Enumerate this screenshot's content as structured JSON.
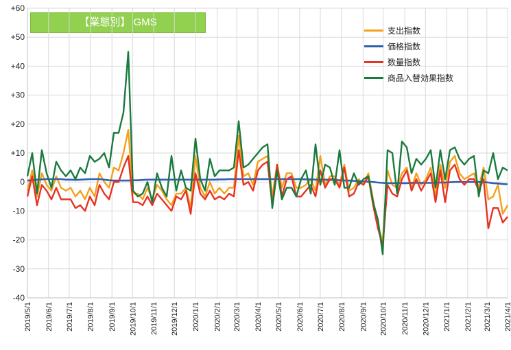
{
  "chart_data": {
    "type": "line",
    "title": "【業態別】 GMS",
    "xlabel": "",
    "ylabel": "",
    "ylim": [
      -40,
      60
    ],
    "yticks": [
      "+60",
      "+50",
      "+40",
      "+30",
      "+20",
      "+10",
      "0",
      "-10",
      "-20",
      "-30",
      "-40"
    ],
    "ytick_values": [
      60,
      50,
      40,
      30,
      20,
      10,
      0,
      -10,
      -20,
      -30,
      -40
    ],
    "xlim_weeks": [
      0,
      100
    ],
    "x_tick_labels": [
      "2019/5/1",
      "2019/6/1",
      "2019/7/1",
      "2019/8/1",
      "2019/9/1",
      "2019/10/1",
      "2019/11/1",
      "2019/12/1",
      "2020/1/1",
      "2020/2/1",
      "2020/3/1",
      "2020/4/1",
      "2020/5/1",
      "2020/6/1",
      "2020/7/1",
      "2020/8/1",
      "2020/9/1",
      "2020/10/1",
      "2020/11/1",
      "2020/12/1",
      "2021/1/1",
      "2021/2/1",
      "2021/3/1",
      "2021/4/1"
    ],
    "x_tick_weeks": [
      0,
      4.4,
      8.7,
      13.1,
      17.6,
      21.9,
      26.3,
      30.6,
      35.0,
      39.5,
      43.6,
      48.0,
      52.3,
      56.7,
      61.0,
      65.4,
      69.9,
      74.1,
      78.6,
      82.9,
      87.3,
      91.7,
      95.7,
      100
    ],
    "grid": true,
    "legend_position": "top-right",
    "series": [
      {
        "name": "支出指数",
        "color": "#f5a01a",
        "values": [
          -3,
          4,
          -5,
          3,
          -1,
          -3,
          2,
          -2,
          -3,
          -2,
          -5,
          -3,
          -6,
          -2,
          -5,
          3,
          0,
          -2,
          5,
          4,
          10,
          18,
          -4,
          -4,
          -6,
          -2,
          -6,
          -1,
          -3,
          -6,
          -8,
          -4,
          -4,
          -2,
          -9,
          9,
          -2,
          -5,
          0,
          -4,
          -2,
          -4,
          -2,
          -2,
          16,
          2,
          3,
          -1,
          7,
          8,
          9,
          -5,
          6,
          -2,
          3,
          3,
          -2,
          -2,
          -1,
          1,
          -3,
          9,
          -1,
          2,
          2,
          -1,
          6,
          -3,
          -2,
          1,
          -1,
          3,
          -6,
          -16,
          -20,
          4,
          -1,
          -2,
          3,
          5,
          -2,
          3,
          -1,
          1,
          5,
          -5,
          6,
          -2,
          7,
          9,
          3,
          1,
          2,
          3,
          -2,
          5,
          -6,
          -5,
          -1,
          -11,
          -8
        ],
        "label_color": "#222222"
      },
      {
        "name": "価格指数",
        "color": "#2e5fb3",
        "values": [
          0.5,
          0.6,
          0.8,
          0.9,
          1,
          1,
          1,
          1,
          0.8,
          0.8,
          0.7,
          0.8,
          0.9,
          1,
          1,
          1,
          0.8,
          0.6,
          0.5,
          0.5,
          0.5,
          0.5,
          0.6,
          0.6,
          0.7,
          0.8,
          0.8,
          0.8,
          0.8,
          0.8,
          0.8,
          0.8,
          0.8,
          0.8,
          0.8,
          0.8,
          0.8,
          0.8,
          0.8,
          0.8,
          0.9,
          0.9,
          1,
          1,
          1,
          1,
          1,
          1,
          1,
          1,
          1,
          1,
          1,
          1,
          1,
          1,
          1,
          1,
          0.9,
          0.9,
          0.8,
          0.8,
          0.8,
          0.7,
          0.7,
          0.6,
          0.5,
          0.5,
          0.4,
          0.3,
          0.2,
          0.1,
          0,
          -0.2,
          -0.3,
          -0.4,
          -0.4,
          -0.4,
          -0.4,
          -0.4,
          -0.3,
          -0.3,
          -0.3,
          -0.3,
          -0.3,
          -0.3,
          -0.2,
          -0.2,
          -0.1,
          0,
          0,
          0,
          0,
          0,
          0,
          0,
          -0.2,
          -0.4,
          -0.5,
          -0.7,
          -0.8
        ]
      },
      {
        "name": "数量指数",
        "color": "#e63323",
        "values": [
          -5,
          2,
          -8,
          -1,
          -3,
          -6,
          -2,
          -6,
          -6,
          -6,
          -9,
          -8,
          -10,
          -5,
          -8,
          -1,
          -4,
          -6,
          0,
          0,
          5,
          9,
          -7,
          -7,
          -8,
          -5,
          -8,
          -4,
          -6,
          -8,
          -10,
          -5,
          -6,
          -3,
          -11,
          3,
          -4,
          -6,
          -3,
          -6,
          -5,
          -6,
          -4,
          -5,
          11,
          -1,
          0,
          -3,
          4,
          6,
          7,
          -8,
          6,
          -5,
          1,
          2,
          -5,
          -5,
          -3,
          -1,
          -5,
          4,
          -2,
          1,
          1,
          -2,
          5,
          -5,
          -4,
          0,
          -1,
          2,
          -8,
          -16,
          -22,
          -1,
          -4,
          -5,
          1,
          4,
          -3,
          1,
          -3,
          0,
          3,
          -7,
          4,
          -7,
          4,
          6,
          1,
          -1,
          1,
          1,
          -3,
          1,
          -16,
          -9,
          -9,
          -14,
          -12
        ]
      },
      {
        "name": "商品入替効果指数",
        "color": "#1b7a3e",
        "values": [
          2,
          10,
          -4,
          11,
          3,
          -2,
          7,
          4,
          2,
          4,
          1,
          5,
          3,
          9,
          7,
          8,
          10,
          5,
          17,
          17,
          24,
          45,
          -3,
          -5,
          -4,
          0,
          -7,
          3,
          -2,
          -5,
          9,
          -3,
          4,
          -2,
          -3,
          15,
          1,
          -3,
          8,
          2,
          4,
          4,
          4,
          5,
          21,
          5,
          6,
          8,
          10,
          12,
          13,
          -9,
          4,
          -6,
          -2,
          -2,
          -5,
          1,
          4,
          -4,
          13,
          -1,
          6,
          5,
          -1,
          11,
          -2,
          -2,
          3,
          -1,
          1,
          2,
          -7,
          -13,
          -25,
          11,
          10,
          -4,
          14,
          12,
          3,
          8,
          6,
          8,
          11,
          -2,
          11,
          1,
          11,
          12,
          8,
          6,
          8,
          9,
          -5,
          4,
          3,
          10,
          1,
          5,
          4
        ]
      }
    ]
  }
}
